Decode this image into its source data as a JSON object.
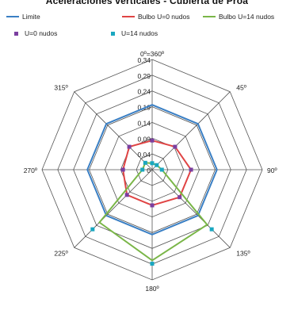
{
  "chart_data": {
    "type": "radar",
    "title": "Aceleraciones verticales - Cubierta de Proa",
    "radial_ticks": [
      "0",
      "0,04",
      "0,09",
      "0,14",
      "0,19",
      "0,24",
      "0,29",
      "0,34"
    ],
    "rlim": [
      0,
      0.34
    ],
    "angles": [
      "0º=360º",
      "45º",
      "90º",
      "135º",
      "180º",
      "225º",
      "270º",
      "315º"
    ],
    "series": [
      {
        "name": "Limite",
        "kind": "line",
        "color": "#3a7fc4",
        "values": [
          0.2,
          0.2,
          0.2,
          0.2,
          0.2,
          0.2,
          0.2,
          0.2
        ]
      },
      {
        "name": "Bulbo U=0 nudos",
        "kind": "line",
        "color": "#e04444",
        "values": [
          0.09,
          0.1,
          0.12,
          0.12,
          0.11,
          0.11,
          0.09,
          0.1
        ]
      },
      {
        "name": "Bulbo U=14 nudos",
        "kind": "line",
        "color": "#7ab648",
        "values": [
          0.02,
          0.02,
          0.03,
          0.24,
          0.28,
          0.23,
          0.03,
          0.03
        ]
      },
      {
        "name": "U=0 nudos",
        "kind": "marker",
        "color": "#7b3fa0",
        "values": [
          0.09,
          0.1,
          0.12,
          0.12,
          0.11,
          0.11,
          0.09,
          0.1
        ]
      },
      {
        "name": "U=14 nudos",
        "kind": "marker",
        "color": "#1aa7c0",
        "values": [
          0.02,
          0.02,
          0.03,
          0.26,
          0.29,
          0.26,
          0.03,
          0.03
        ]
      }
    ],
    "grid": true,
    "legend": "top"
  }
}
